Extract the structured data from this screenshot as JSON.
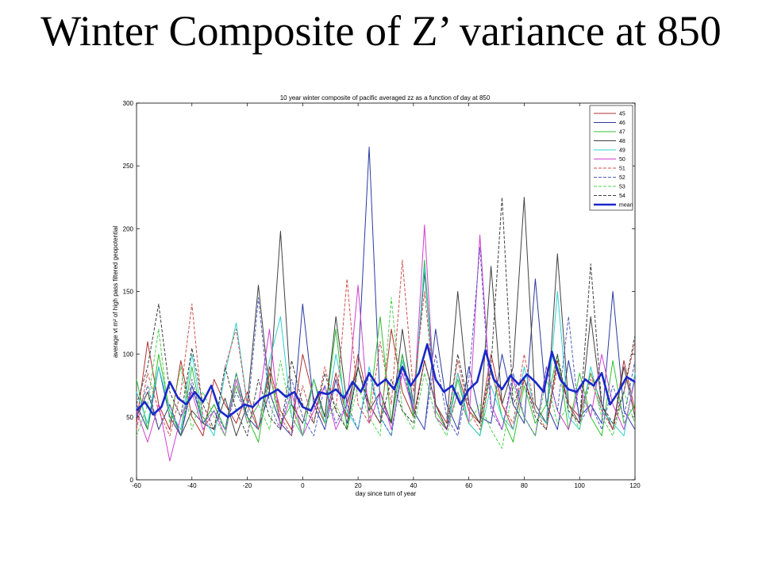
{
  "slide": {
    "title": "Winter Composite of Z’ variance at 850"
  },
  "chart_data": {
    "type": "line",
    "title": "10 year winter composite of pacific averaged zz as a function of day at 850",
    "xlabel": "day since turn of year",
    "ylabel": "average vt m² of high pass filtered geopotential",
    "xlim": [
      -60,
      120
    ],
    "ylim": [
      0,
      300
    ],
    "xticks": [
      -60,
      -40,
      -20,
      0,
      20,
      40,
      60,
      80,
      100,
      120
    ],
    "yticks": [
      0,
      50,
      100,
      150,
      200,
      250,
      300
    ],
    "grid": false,
    "legend_position": "top-right",
    "series": [
      {
        "name": "45",
        "color": "#b03030",
        "dash": "solid",
        "width": 1,
        "x": [
          -60,
          -56,
          -52,
          -48,
          -44,
          -40,
          -36,
          -32,
          -28,
          -24,
          -20,
          -16,
          -12,
          -8,
          -4,
          0,
          4,
          8,
          12,
          16,
          20,
          24,
          28,
          32,
          36,
          40,
          44,
          48,
          52,
          56,
          60,
          64,
          68,
          72,
          76,
          80,
          84,
          88,
          92,
          96,
          100,
          104,
          108,
          112,
          116,
          120
        ],
        "y": [
          45,
          110,
          60,
          40,
          95,
          50,
          35,
          80,
          60,
          45,
          70,
          40,
          90,
          55,
          40,
          100,
          65,
          45,
          85,
          50,
          100,
          60,
          45,
          120,
          70,
          50,
          95,
          60,
          40,
          85,
          55,
          45,
          100,
          60,
          40,
          80,
          55,
          45,
          95,
          60,
          50,
          85,
          60,
          40,
          95,
          55
        ]
      },
      {
        "name": "46",
        "color": "#2a3aa0",
        "dash": "solid",
        "width": 1,
        "x": [
          -60,
          -56,
          -52,
          -48,
          -44,
          -40,
          -36,
          -32,
          -28,
          -24,
          -20,
          -16,
          -12,
          -8,
          -4,
          0,
          4,
          8,
          12,
          16,
          20,
          24,
          28,
          32,
          36,
          40,
          44,
          48,
          52,
          56,
          60,
          64,
          68,
          72,
          76,
          80,
          84,
          88,
          92,
          96,
          100,
          104,
          108,
          112,
          116,
          120
        ],
        "y": [
          60,
          40,
          90,
          50,
          35,
          75,
          45,
          60,
          40,
          85,
          50,
          40,
          70,
          45,
          35,
          140,
          60,
          40,
          80,
          45,
          90,
          265,
          60,
          45,
          100,
          55,
          40,
          120,
          60,
          40,
          90,
          50,
          45,
          100,
          60,
          45,
          160,
          60,
          40,
          95,
          50,
          60,
          45,
          150,
          55,
          40
        ]
      },
      {
        "name": "47",
        "color": "#30c030",
        "dash": "solid",
        "width": 1,
        "x": [
          -60,
          -56,
          -52,
          -48,
          -44,
          -40,
          -36,
          -32,
          -28,
          -24,
          -20,
          -16,
          -12,
          -8,
          -4,
          0,
          4,
          8,
          12,
          16,
          20,
          24,
          28,
          32,
          36,
          40,
          44,
          48,
          52,
          56,
          60,
          64,
          68,
          72,
          76,
          80,
          84,
          88,
          92,
          96,
          100,
          104,
          108,
          112,
          116,
          120
        ],
        "y": [
          80,
          40,
          100,
          55,
          35,
          90,
          45,
          60,
          40,
          75,
          50,
          30,
          85,
          45,
          60,
          35,
          80,
          50,
          120,
          40,
          90,
          55,
          130,
          45,
          100,
          50,
          175,
          55,
          40,
          80,
          45,
          35,
          90,
          50,
          30,
          75,
          45,
          60,
          100,
          40,
          85,
          50,
          35,
          95,
          45,
          60
        ]
      },
      {
        "name": "48",
        "color": "#404040",
        "dash": "solid",
        "width": 1,
        "x": [
          -60,
          -56,
          -52,
          -48,
          -44,
          -40,
          -36,
          -32,
          -28,
          -24,
          -20,
          -16,
          -12,
          -8,
          -4,
          0,
          4,
          8,
          12,
          16,
          20,
          24,
          28,
          32,
          36,
          40,
          44,
          48,
          52,
          56,
          60,
          64,
          68,
          72,
          76,
          80,
          84,
          88,
          92,
          96,
          100,
          104,
          108,
          112,
          116,
          120
        ],
        "y": [
          50,
          70,
          40,
          60,
          35,
          55,
          45,
          40,
          65,
          35,
          60,
          155,
          70,
          198,
          60,
          45,
          80,
          50,
          130,
          60,
          90,
          55,
          70,
          45,
          120,
          60,
          165,
          60,
          45,
          150,
          60,
          45,
          170,
          60,
          90,
          225,
          60,
          45,
          180,
          60,
          45,
          130,
          60,
          40,
          90,
          50
        ]
      },
      {
        "name": "49",
        "color": "#30d0d0",
        "dash": "solid",
        "width": 1,
        "x": [
          -60,
          -56,
          -52,
          -48,
          -44,
          -40,
          -36,
          -32,
          -28,
          -24,
          -20,
          -16,
          -12,
          -8,
          -4,
          0,
          4,
          8,
          12,
          16,
          20,
          24,
          28,
          32,
          36,
          40,
          44,
          48,
          52,
          56,
          60,
          64,
          68,
          72,
          76,
          80,
          84,
          88,
          92,
          96,
          100,
          104,
          108,
          112,
          116,
          120
        ],
        "y": [
          70,
          45,
          90,
          55,
          40,
          100,
          50,
          35,
          85,
          125,
          60,
          40,
          95,
          130,
          50,
          35,
          80,
          45,
          100,
          55,
          40,
          90,
          50,
          35,
          95,
          60,
          170,
          50,
          40,
          85,
          45,
          35,
          75,
          50,
          40,
          90,
          55,
          45,
          150,
          50,
          40,
          90,
          55,
          45,
          35,
          85
        ]
      },
      {
        "name": "50",
        "color": "#d040d0",
        "dash": "solid",
        "width": 1,
        "x": [
          -60,
          -56,
          -52,
          -48,
          -44,
          -40,
          -36,
          -32,
          -28,
          -24,
          -20,
          -16,
          -12,
          -8,
          -4,
          0,
          4,
          8,
          12,
          16,
          20,
          24,
          28,
          32,
          36,
          40,
          44,
          48,
          52,
          56,
          60,
          64,
          68,
          72,
          76,
          80,
          84,
          88,
          92,
          96,
          100,
          104,
          108,
          112,
          116,
          120
        ],
        "y": [
          55,
          30,
          60,
          15,
          50,
          70,
          40,
          55,
          35,
          80,
          45,
          60,
          120,
          40,
          70,
          35,
          55,
          75,
          40,
          60,
          155,
          45,
          70,
          40,
          85,
          55,
          203,
          50,
          40,
          70,
          45,
          195,
          60,
          40,
          80,
          50,
          35,
          90,
          55,
          40,
          75,
          50,
          100,
          60,
          40,
          80
        ]
      },
      {
        "name": "51",
        "color": "#d05050",
        "dash": "dashed",
        "width": 1,
        "x": [
          -60,
          -56,
          -52,
          -48,
          -44,
          -40,
          -36,
          -32,
          -28,
          -24,
          -20,
          -16,
          -12,
          -8,
          -4,
          0,
          4,
          8,
          12,
          16,
          20,
          24,
          28,
          32,
          36,
          40,
          44,
          48,
          52,
          56,
          60,
          64,
          68,
          72,
          76,
          80,
          84,
          88,
          92,
          96,
          100,
          104,
          108,
          112,
          116,
          120
        ],
        "y": [
          40,
          85,
          55,
          35,
          70,
          140,
          50,
          40,
          90,
          120,
          60,
          40,
          85,
          50,
          35,
          75,
          45,
          90,
          55,
          160,
          60,
          45,
          110,
          60,
          175,
          70,
          150,
          60,
          45,
          95,
          55,
          40,
          85,
          60,
          45,
          100,
          55,
          40,
          90,
          60,
          45,
          80,
          55,
          40,
          70,
          110
        ]
      },
      {
        "name": "52",
        "color": "#5060c0",
        "dash": "dashed",
        "width": 1,
        "x": [
          -60,
          -56,
          -52,
          -48,
          -44,
          -40,
          -36,
          -32,
          -28,
          -24,
          -20,
          -16,
          -12,
          -8,
          -4,
          0,
          4,
          8,
          12,
          16,
          20,
          24,
          28,
          32,
          36,
          40,
          44,
          48,
          52,
          56,
          60,
          64,
          68,
          72,
          76,
          80,
          84,
          88,
          92,
          96,
          100,
          104,
          108,
          112,
          116,
          120
        ],
        "y": [
          50,
          75,
          40,
          60,
          35,
          80,
          45,
          55,
          40,
          70,
          50,
          145,
          60,
          40,
          80,
          50,
          35,
          75,
          45,
          60,
          40,
          85,
          50,
          35,
          90,
          55,
          40,
          100,
          50,
          35,
          80,
          185,
          55,
          40,
          85,
          50,
          35,
          90,
          55,
          130,
          45,
          60,
          40,
          75,
          50,
          95
        ]
      },
      {
        "name": "53",
        "color": "#50d050",
        "dash": "dashed",
        "width": 1,
        "x": [
          -60,
          -56,
          -52,
          -48,
          -44,
          -40,
          -36,
          -32,
          -28,
          -24,
          -20,
          -16,
          -12,
          -8,
          -4,
          0,
          4,
          8,
          12,
          16,
          20,
          24,
          28,
          32,
          36,
          40,
          44,
          48,
          52,
          56,
          60,
          64,
          68,
          72,
          76,
          80,
          84,
          88,
          92,
          96,
          100,
          104,
          108,
          112,
          116,
          120
        ],
        "y": [
          35,
          60,
          120,
          45,
          90,
          40,
          70,
          50,
          35,
          85,
          45,
          60,
          40,
          95,
          50,
          35,
          80,
          45,
          60,
          40,
          75,
          50,
          35,
          145,
          55,
          40,
          85,
          50,
          35,
          70,
          45,
          60,
          40,
          25,
          75,
          50,
          35,
          80,
          45,
          60,
          40,
          85,
          50,
          35,
          70,
          45
        ]
      },
      {
        "name": "54",
        "color": "#404040",
        "dash": "dashed",
        "width": 1,
        "x": [
          -60,
          -56,
          -52,
          -48,
          -44,
          -40,
          -36,
          -32,
          -28,
          -24,
          -20,
          -16,
          -12,
          -8,
          -4,
          0,
          4,
          8,
          12,
          16,
          20,
          24,
          28,
          32,
          36,
          40,
          44,
          48,
          52,
          56,
          60,
          64,
          68,
          72,
          76,
          80,
          84,
          88,
          92,
          96,
          100,
          104,
          108,
          112,
          116,
          120
        ],
        "y": [
          60,
          90,
          140,
          70,
          50,
          105,
          60,
          40,
          90,
          55,
          35,
          80,
          50,
          40,
          95,
          60,
          45,
          85,
          55,
          40,
          90,
          60,
          45,
          80,
          55,
          45,
          95,
          60,
          40,
          100,
          60,
          45,
          90,
          225,
          60,
          80,
          50,
          40,
          100,
          55,
          45,
          172,
          60,
          45,
          70,
          115
        ]
      },
      {
        "name": "mean",
        "color": "#1a28c8",
        "dash": "solid",
        "width": 2.6,
        "x": [
          -60,
          -57,
          -54,
          -51,
          -48,
          -45,
          -42,
          -39,
          -36,
          -33,
          -30,
          -27,
          -24,
          -21,
          -18,
          -15,
          -12,
          -9,
          -6,
          -3,
          0,
          3,
          6,
          9,
          12,
          15,
          18,
          21,
          24,
          27,
          30,
          33,
          36,
          39,
          42,
          45,
          48,
          51,
          54,
          57,
          60,
          63,
          66,
          69,
          72,
          75,
          78,
          81,
          84,
          87,
          90,
          93,
          96,
          99,
          102,
          105,
          108,
          111,
          114,
          117,
          120
        ],
        "y": [
          55,
          62,
          52,
          58,
          78,
          65,
          60,
          70,
          62,
          75,
          55,
          50,
          55,
          60,
          58,
          65,
          68,
          72,
          66,
          70,
          58,
          55,
          70,
          68,
          72,
          65,
          78,
          70,
          85,
          75,
          80,
          72,
          90,
          75,
          85,
          108,
          80,
          70,
          75,
          60,
          72,
          78,
          103,
          80,
          72,
          83,
          76,
          84,
          78,
          70,
          102,
          80,
          72,
          70,
          80,
          75,
          85,
          60,
          70,
          82,
          78
        ]
      }
    ]
  }
}
